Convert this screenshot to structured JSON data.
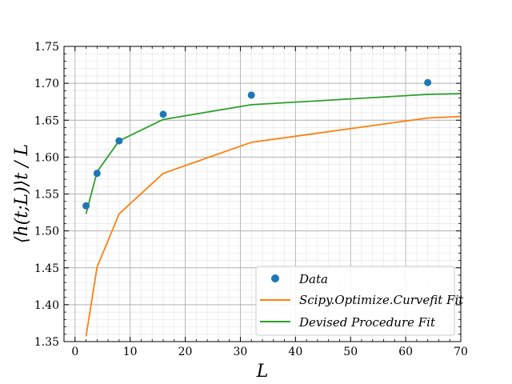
{
  "chart_data": {
    "type": "line",
    "title": "",
    "xlabel": "L",
    "ylabel": "⟨h(t;L)⟩t / L",
    "xlim": [
      -2,
      70
    ],
    "ylim": [
      1.35,
      1.75
    ],
    "x_ticks": [
      0,
      10,
      20,
      30,
      40,
      50,
      60,
      70
    ],
    "y_ticks": [
      1.35,
      1.4,
      1.45,
      1.5,
      1.55,
      1.6,
      1.65,
      1.7,
      1.75
    ],
    "x_tick_labels": [
      "0",
      "10",
      "20",
      "30",
      "40",
      "50",
      "60",
      "70"
    ],
    "y_tick_labels": [
      "1.35",
      "1.40",
      "1.45",
      "1.50",
      "1.55",
      "1.60",
      "1.65",
      "1.70",
      "1.75"
    ],
    "grid": {
      "major": true,
      "minor": true
    },
    "legend_position": "bottom-right",
    "series": [
      {
        "name": "Data",
        "kind": "scatter",
        "color": "#1f77b4",
        "x": [
          2,
          4,
          8,
          16,
          32,
          64
        ],
        "y": [
          1.534,
          1.578,
          1.622,
          1.658,
          1.684,
          1.701
        ]
      },
      {
        "name": "Scipy.Optimize.Curvefit Fit",
        "kind": "line",
        "color": "#ff7f0e",
        "x": [
          2,
          4,
          8,
          16,
          32,
          64,
          70
        ],
        "y": [
          1.357,
          1.451,
          1.523,
          1.578,
          1.62,
          1.653,
          1.655
        ]
      },
      {
        "name": "Devised Procedure Fit",
        "kind": "line",
        "color": "#2ca02c",
        "x": [
          2,
          4,
          8,
          16,
          32,
          64,
          70
        ],
        "y": [
          1.523,
          1.58,
          1.622,
          1.651,
          1.671,
          1.685,
          1.686
        ]
      }
    ]
  }
}
